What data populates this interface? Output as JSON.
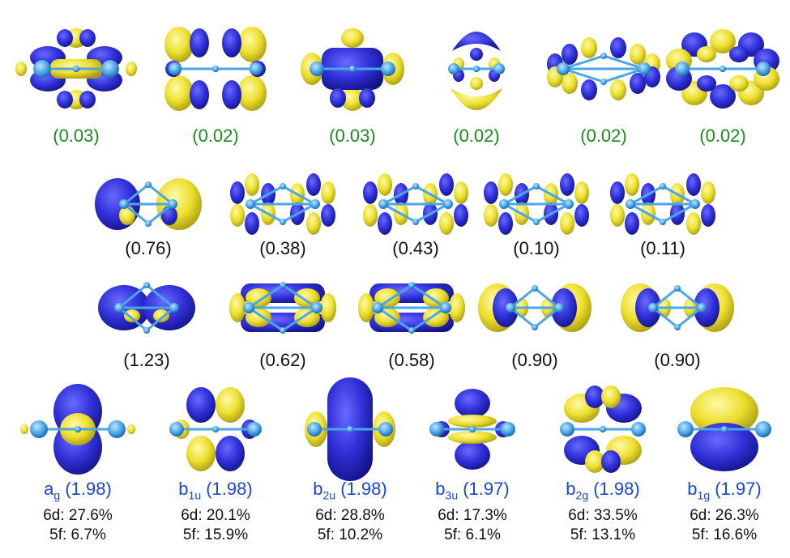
{
  "colors": {
    "positive": "#ecdf2e",
    "negative": "#3030d8",
    "atom": "#4aa6e8",
    "bond": "#4aa6e8",
    "row1_label": "#1c8a1c",
    "row4_label": "#1a46d6"
  },
  "row1": [
    {
      "label": "(0.03)",
      "shape": "sigma-cross"
    },
    {
      "label": "(0.02)",
      "shape": "pi-lobes"
    },
    {
      "label": "(0.03)",
      "shape": "big-box"
    },
    {
      "label": "(0.02)",
      "shape": "dome"
    },
    {
      "label": "(0.02)",
      "shape": "ring"
    },
    {
      "label": "(0.02)",
      "shape": "ring-dense"
    }
  ],
  "row2": [
    {
      "label": "(0.76)",
      "shape": "two-spheres"
    },
    {
      "label": "(0.38)",
      "shape": "cloverleaf"
    },
    {
      "label": "(0.43)",
      "shape": "cloverleaf"
    },
    {
      "label": "(0.10)",
      "shape": "cloverleaf"
    },
    {
      "label": "(0.11)",
      "shape": "cloverleaf"
    }
  ],
  "row3": [
    {
      "label": "(1.23)",
      "shape": "two-spheres-flat"
    },
    {
      "label": "(0.62)",
      "shape": "double-band"
    },
    {
      "label": "(0.58)",
      "shape": "double-band"
    },
    {
      "label": "(0.90)",
      "shape": "crescents"
    },
    {
      "label": "(0.90)",
      "shape": "crescents"
    }
  ],
  "row4": [
    {
      "sym": "a",
      "sub": "g",
      "occ": "(1.98)",
      "d": "6d: 27.6%",
      "f": "5f: 6.7%"
    },
    {
      "sym": "b",
      "sub": "1u",
      "occ": "(1.98)",
      "d": "6d: 20.1%",
      "f": "5f: 15.9%"
    },
    {
      "sym": "b",
      "sub": "2u",
      "occ": "(1.98)",
      "d": "6d: 28.8%",
      "f": "5f: 10.2%"
    },
    {
      "sym": "b",
      "sub": "3u",
      "occ": "(1.97)",
      "d": "6d: 17.3%",
      "f": "5f: 6.1%"
    },
    {
      "sym": "b",
      "sub": "2g",
      "occ": "(1.98)",
      "d": "6d: 33.5%",
      "f": "5f: 13.1%"
    },
    {
      "sym": "b",
      "sub": "1g",
      "occ": "(1.97)",
      "d": "6d: 26.3%",
      "f": "5f: 16.6%"
    }
  ]
}
